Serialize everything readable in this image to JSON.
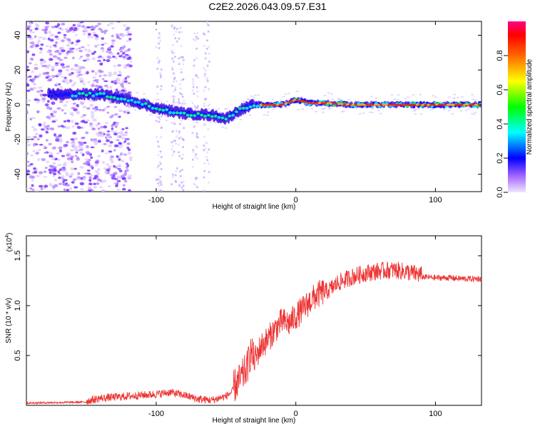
{
  "title": "C2E2.2026.043.09.57.E31",
  "chart_data": [
    {
      "type": "heatmap",
      "xlabel": "Height of straight line (km)",
      "ylabel": "Frequency (Hz)",
      "xlim": [
        -193,
        133
      ],
      "ylim": [
        -50,
        48
      ],
      "xticks": [
        -100,
        0,
        100
      ],
      "xtick_labels": [
        "-100",
        "0",
        "100"
      ],
      "yticks": [
        -40,
        -20,
        0,
        20,
        40
      ],
      "ytick_labels": [
        "-40",
        "-20",
        "0",
        "20",
        "40"
      ],
      "ridge": {
        "x": [
          -177,
          -160,
          -140,
          -120,
          -100,
          -80,
          -60,
          -50,
          -40,
          -30,
          -20,
          -10,
          0,
          10,
          20,
          40,
          60,
          80,
          100,
          133
        ],
        "freq": [
          6,
          6,
          6,
          3,
          -2,
          -5,
          -6,
          -8,
          -3,
          0,
          0,
          0,
          3,
          1,
          1,
          0,
          0,
          0,
          0,
          0
        ]
      },
      "colorbar": {
        "label": "Normalized spectral amplitude",
        "range": [
          0,
          1
        ],
        "ticks": [
          0.0,
          0.2,
          0.4,
          0.6,
          0.8
        ],
        "tick_labels": [
          "0.0",
          "0.2",
          "0.4",
          "0.6",
          "0.8"
        ]
      }
    },
    {
      "type": "line",
      "xlabel": "Height of straight line (km)",
      "ylabel": "SNR (10 * v/v)",
      "multiplier": "(x10",
      "multiplier_exp": "4",
      "multiplier_close": ")",
      "xlim": [
        -193,
        133
      ],
      "ylim": [
        0,
        1.7
      ],
      "xticks": [
        -100,
        0,
        100
      ],
      "xtick_labels": [
        "-100",
        "0",
        "100"
      ],
      "yticks": [
        0.5,
        1.0,
        1.5
      ],
      "ytick_labels": [
        "0.5",
        "1.0",
        "1.5"
      ],
      "series": [
        {
          "name": "SNR",
          "color": "#ee3333",
          "x": [
            -193,
            -150,
            -140,
            -120,
            -100,
            -90,
            -80,
            -70,
            -60,
            -50,
            -45,
            -40,
            -35,
            -32,
            -30,
            -25,
            -20,
            -15,
            -10,
            -5,
            0,
            5,
            10,
            15,
            20,
            25,
            30,
            40,
            50,
            60,
            70,
            80,
            90,
            100,
            110,
            120,
            133
          ],
          "y": [
            0.02,
            0.03,
            0.06,
            0.08,
            0.1,
            0.12,
            0.09,
            0.05,
            0.04,
            0.08,
            0.13,
            0.2,
            0.32,
            0.5,
            0.4,
            0.55,
            0.62,
            0.72,
            0.8,
            0.78,
            0.85,
            0.92,
            1.0,
            1.06,
            1.1,
            1.14,
            1.2,
            1.26,
            1.3,
            1.32,
            1.33,
            1.31,
            1.28,
            1.27,
            1.27,
            1.26,
            1.26
          ]
        }
      ]
    }
  ]
}
